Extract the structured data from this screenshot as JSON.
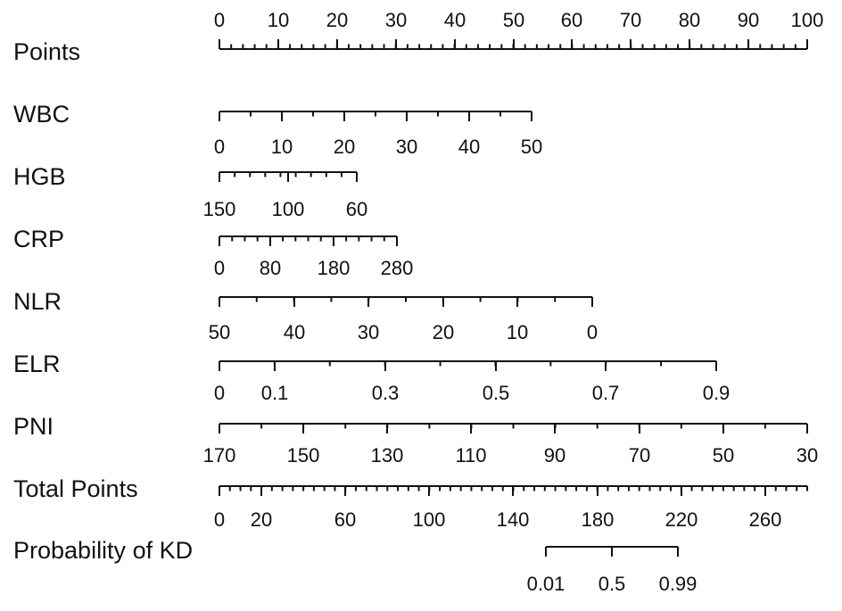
{
  "chart_data": {
    "type": "nomogram",
    "title": "",
    "scales": [
      {
        "label": "Points",
        "range": [
          0,
          100
        ],
        "tick_labels": [
          "0",
          "10",
          "20",
          "30",
          "40",
          "50",
          "60",
          "70",
          "80",
          "90",
          "100"
        ]
      },
      {
        "label": "WBC",
        "range": [
          0,
          50
        ],
        "tick_labels": [
          "0",
          "10",
          "20",
          "30",
          "40",
          "50"
        ]
      },
      {
        "label": "HGB",
        "range": [
          150,
          60
        ],
        "tick_labels": [
          "150",
          "100",
          "60"
        ]
      },
      {
        "label": "CRP",
        "range": [
          0,
          280
        ],
        "tick_labels": [
          "0",
          "80",
          "180",
          "280"
        ]
      },
      {
        "label": "NLR",
        "range": [
          50,
          0
        ],
        "tick_labels": [
          "50",
          "40",
          "30",
          "20",
          "10",
          "0"
        ]
      },
      {
        "label": "ELR",
        "range": [
          0,
          0.9
        ],
        "tick_labels": [
          "0",
          "0.1",
          "0.3",
          "0.5",
          "0.7",
          "0.9"
        ]
      },
      {
        "label": "PNI",
        "range": [
          170,
          30
        ],
        "tick_labels": [
          "170",
          "150",
          "130",
          "110",
          "90",
          "70",
          "50",
          "30"
        ]
      },
      {
        "label": "Total Points",
        "range": [
          0,
          280
        ],
        "tick_labels": [
          "0",
          "20",
          "60",
          "100",
          "140",
          "180",
          "220",
          "260"
        ]
      },
      {
        "label": "Probability of KD",
        "values": [
          0.01,
          0.5,
          0.99
        ],
        "tick_labels": [
          "0.01",
          "0.5",
          "0.99"
        ]
      }
    ]
  }
}
